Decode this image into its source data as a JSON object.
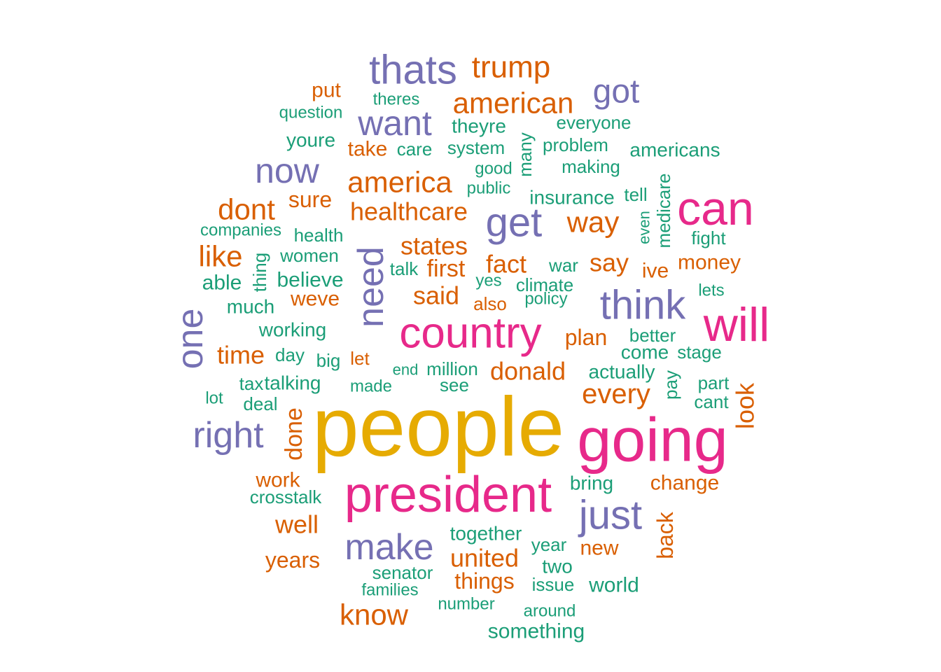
{
  "palette": {
    "gold": "#E6AB02",
    "pink": "#E7298A",
    "purple": "#7570B3",
    "orange": "#D95F02",
    "green": "#1B9E77"
  },
  "words": [
    {
      "text": "people",
      "color": "gold"
    },
    {
      "text": "president",
      "color": "pink"
    },
    {
      "text": "going",
      "color": "pink"
    },
    {
      "text": "country",
      "color": "pink"
    },
    {
      "text": "will",
      "color": "pink"
    },
    {
      "text": "can",
      "color": "pink"
    },
    {
      "text": "thats",
      "color": "purple"
    },
    {
      "text": "get",
      "color": "purple"
    },
    {
      "text": "think",
      "color": "purple"
    },
    {
      "text": "just",
      "color": "purple"
    },
    {
      "text": "need",
      "color": "purple"
    },
    {
      "text": "one",
      "color": "purple"
    },
    {
      "text": "make",
      "color": "purple"
    },
    {
      "text": "right",
      "color": "purple"
    },
    {
      "text": "want",
      "color": "purple"
    },
    {
      "text": "now",
      "color": "purple"
    },
    {
      "text": "got",
      "color": "purple"
    },
    {
      "text": "trump",
      "color": "orange"
    },
    {
      "text": "american",
      "color": "orange"
    },
    {
      "text": "america",
      "color": "orange"
    },
    {
      "text": "dont",
      "color": "orange"
    },
    {
      "text": "healthcare",
      "color": "orange"
    },
    {
      "text": "way",
      "color": "orange"
    },
    {
      "text": "like",
      "color": "orange"
    },
    {
      "text": "states",
      "color": "orange"
    },
    {
      "text": "know",
      "color": "orange"
    },
    {
      "text": "every",
      "color": "orange"
    },
    {
      "text": "donald",
      "color": "orange"
    },
    {
      "text": "fact",
      "color": "orange"
    },
    {
      "text": "say",
      "color": "orange"
    },
    {
      "text": "said",
      "color": "orange"
    },
    {
      "text": "time",
      "color": "orange"
    },
    {
      "text": "well",
      "color": "orange"
    },
    {
      "text": "united",
      "color": "orange"
    },
    {
      "text": "first",
      "color": "orange"
    },
    {
      "text": "look",
      "color": "orange"
    },
    {
      "text": "done",
      "color": "orange"
    },
    {
      "text": "things",
      "color": "orange"
    },
    {
      "text": "back",
      "color": "orange"
    },
    {
      "text": "plan",
      "color": "orange"
    },
    {
      "text": "sure",
      "color": "orange"
    },
    {
      "text": "years",
      "color": "orange"
    },
    {
      "text": "change",
      "color": "orange"
    },
    {
      "text": "work",
      "color": "orange"
    },
    {
      "text": "weve",
      "color": "orange"
    },
    {
      "text": "put",
      "color": "orange"
    },
    {
      "text": "take",
      "color": "orange"
    },
    {
      "text": "new",
      "color": "orange"
    },
    {
      "text": "money",
      "color": "orange"
    },
    {
      "text": "ive",
      "color": "orange"
    },
    {
      "text": "also",
      "color": "orange"
    },
    {
      "text": "let",
      "color": "orange"
    },
    {
      "text": "theyre",
      "color": "green"
    },
    {
      "text": "system",
      "color": "green"
    },
    {
      "text": "everyone",
      "color": "green"
    },
    {
      "text": "americans",
      "color": "green"
    },
    {
      "text": "youre",
      "color": "green"
    },
    {
      "text": "insurance",
      "color": "green"
    },
    {
      "text": "something",
      "color": "green"
    },
    {
      "text": "world",
      "color": "green"
    },
    {
      "text": "medicare",
      "color": "green"
    },
    {
      "text": "together",
      "color": "green"
    },
    {
      "text": "actually",
      "color": "green"
    },
    {
      "text": "believe",
      "color": "green"
    },
    {
      "text": "working",
      "color": "green"
    },
    {
      "text": "many",
      "color": "green"
    },
    {
      "text": "two",
      "color": "green"
    },
    {
      "text": "come",
      "color": "green"
    },
    {
      "text": "talking",
      "color": "green"
    },
    {
      "text": "bring",
      "color": "green"
    },
    {
      "text": "senator",
      "color": "green"
    },
    {
      "text": "year",
      "color": "green"
    },
    {
      "text": "able",
      "color": "green"
    },
    {
      "text": "cant",
      "color": "green"
    },
    {
      "text": "care",
      "color": "green"
    },
    {
      "text": "pay",
      "color": "green"
    },
    {
      "text": "women",
      "color": "green"
    },
    {
      "text": "war",
      "color": "green"
    },
    {
      "text": "much",
      "color": "green"
    },
    {
      "text": "thing",
      "color": "green"
    },
    {
      "text": "million",
      "color": "green"
    },
    {
      "text": "see",
      "color": "green"
    },
    {
      "text": "problem",
      "color": "green"
    },
    {
      "text": "making",
      "color": "green"
    },
    {
      "text": "climate",
      "color": "green"
    },
    {
      "text": "policy",
      "color": "green"
    },
    {
      "text": "better",
      "color": "green"
    },
    {
      "text": "stage",
      "color": "green"
    },
    {
      "text": "part",
      "color": "green"
    },
    {
      "text": "deal",
      "color": "green"
    },
    {
      "text": "big",
      "color": "green"
    },
    {
      "text": "day",
      "color": "green"
    },
    {
      "text": "tax",
      "color": "green"
    },
    {
      "text": "crosstalk",
      "color": "green"
    },
    {
      "text": "companies",
      "color": "green"
    },
    {
      "text": "health",
      "color": "green"
    },
    {
      "text": "question",
      "color": "green"
    },
    {
      "text": "theres",
      "color": "green"
    },
    {
      "text": "public",
      "color": "green"
    },
    {
      "text": "good",
      "color": "green"
    },
    {
      "text": "talk",
      "color": "green"
    },
    {
      "text": "yes",
      "color": "green"
    },
    {
      "text": "fight",
      "color": "green"
    },
    {
      "text": "tell",
      "color": "green"
    },
    {
      "text": "even",
      "color": "green"
    },
    {
      "text": "lets",
      "color": "green"
    },
    {
      "text": "end",
      "color": "green"
    },
    {
      "text": "made",
      "color": "green"
    },
    {
      "text": "lot",
      "color": "green"
    },
    {
      "text": "families",
      "color": "green"
    },
    {
      "text": "issue",
      "color": "green"
    },
    {
      "text": "number",
      "color": "green"
    },
    {
      "text": "around",
      "color": "green"
    }
  ]
}
